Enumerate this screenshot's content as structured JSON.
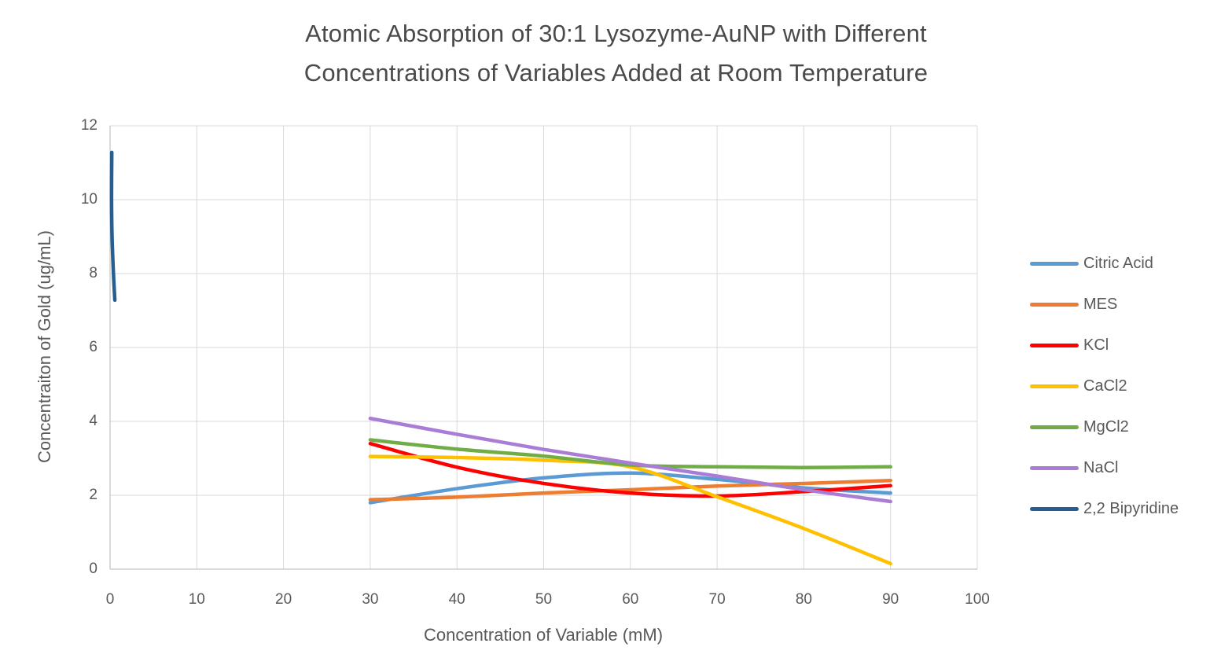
{
  "chart": {
    "title_lines": [
      "Atomic Absorption of 30:1 Lysozyme-AuNP with Different",
      "Concentrations of Variables Added at Room Temperature"
    ]
  },
  "chart_data": {
    "type": "line",
    "title": "Atomic Absorption of 30:1 Lysozyme-AuNP with Different Concentrations of Variables Added at Room Temperature",
    "xlabel": "Concentration of Variable (mM)",
    "ylabel": "Concentraiton of Gold (ug/mL)",
    "xlim": [
      0,
      100
    ],
    "ylim": [
      0,
      12
    ],
    "x_ticks": [
      0,
      10,
      20,
      30,
      40,
      50,
      60,
      70,
      80,
      90,
      100
    ],
    "y_ticks": [
      0,
      2,
      4,
      6,
      8,
      10,
      12
    ],
    "grid": true,
    "legend_position": "right",
    "smooth_lines": true,
    "series": [
      {
        "name": "Citric Acid",
        "color": "#5B9BD5",
        "points": [
          [
            30,
            1.8
          ],
          [
            40,
            2.18
          ],
          [
            50,
            2.47
          ],
          [
            60,
            2.6
          ],
          [
            70,
            2.43
          ],
          [
            80,
            2.2
          ],
          [
            90,
            2.06
          ]
        ]
      },
      {
        "name": "MES",
        "color": "#ED7D31",
        "points": [
          [
            30,
            1.88
          ],
          [
            40,
            1.95
          ],
          [
            50,
            2.06
          ],
          [
            60,
            2.15
          ],
          [
            70,
            2.25
          ],
          [
            80,
            2.32
          ],
          [
            90,
            2.4
          ]
        ]
      },
      {
        "name": "KCl",
        "color": "#FF0000",
        "points": [
          [
            30,
            3.4
          ],
          [
            40,
            2.76
          ],
          [
            50,
            2.32
          ],
          [
            60,
            2.06
          ],
          [
            70,
            1.98
          ],
          [
            80,
            2.1
          ],
          [
            90,
            2.26
          ]
        ]
      },
      {
        "name": "CaCl2",
        "color": "#FFC000",
        "points": [
          [
            30,
            3.05
          ],
          [
            40,
            3.02
          ],
          [
            50,
            2.95
          ],
          [
            60,
            2.77
          ],
          [
            70,
            1.96
          ],
          [
            80,
            1.1
          ],
          [
            90,
            0.15
          ]
        ]
      },
      {
        "name": "MgCl2",
        "color": "#70AD47",
        "points": [
          [
            30,
            3.5
          ],
          [
            40,
            3.25
          ],
          [
            50,
            3.06
          ],
          [
            60,
            2.82
          ],
          [
            70,
            2.77
          ],
          [
            80,
            2.75
          ],
          [
            90,
            2.77
          ]
        ]
      },
      {
        "name": "NaCl",
        "color": "#A97CD6",
        "points": [
          [
            30,
            4.08
          ],
          [
            40,
            3.65
          ],
          [
            50,
            3.24
          ],
          [
            60,
            2.87
          ],
          [
            70,
            2.52
          ],
          [
            80,
            2.15
          ],
          [
            90,
            1.83
          ]
        ]
      },
      {
        "name": "2,2 Bipyridine",
        "color": "#275E91",
        "points": [
          [
            0.2,
            11.28
          ],
          [
            0.17,
            10.1
          ],
          [
            0.22,
            9.1
          ],
          [
            0.37,
            8.1
          ],
          [
            0.55,
            7.28
          ]
        ]
      }
    ],
    "colors": {
      "gridline": "#D9D9D9",
      "axis_line": "#C3C3C3",
      "text": "#595959",
      "title_text": "#4a4a4a"
    }
  }
}
